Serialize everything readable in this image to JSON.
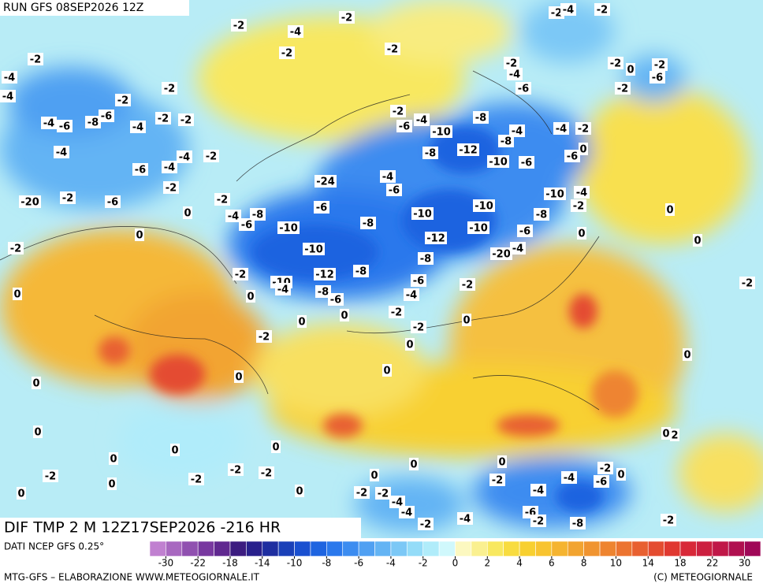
{
  "header": {
    "run": "RUN GFS 08SEP2026 12Z"
  },
  "title": "DIF TMP 2 M 12Z17SEP2026 -216 HR",
  "source": "DATI NCEP GFS 0.25°",
  "credit": "MTG-GFS – ELABORAZIONE WWW.METEOGIORNALE.IT",
  "copyright": "(C) METEOGIORNALE",
  "colorbar": {
    "ticks": [
      -30,
      -22,
      -18,
      -14,
      -10,
      -8,
      -6,
      -4,
      -2,
      0,
      2,
      4,
      6,
      8,
      10,
      14,
      18,
      22,
      30
    ],
    "colors": [
      "#c080d0",
      "#a868c0",
      "#9050b0",
      "#7838a0",
      "#602890",
      "#3c1c80",
      "#28208c",
      "#1e2ea0",
      "#1a40b8",
      "#1a50d0",
      "#1e64e0",
      "#2a78ec",
      "#3c8cf0",
      "#50a0f2",
      "#64b4f4",
      "#7cc8f6",
      "#94dcf8",
      "#b0ecfa",
      "#d0f8fc",
      "#fcf8c0",
      "#faf090",
      "#f8e860",
      "#f8dc40",
      "#f8d030",
      "#f8c430",
      "#f5b430",
      "#f2a430",
      "#f09430",
      "#ee8430",
      "#ec7430",
      "#e86030",
      "#e44c30",
      "#e03830",
      "#d82838",
      "#cc2040",
      "#c01848",
      "#b01050",
      "#a00858"
    ]
  },
  "map": {
    "labels": [
      -2,
      -4,
      -2,
      -2,
      -2,
      -2,
      -4,
      -4,
      -2,
      -2,
      -4,
      -6,
      -8,
      -6,
      -4,
      -2,
      -2,
      -4,
      -2,
      -4,
      -6,
      -4,
      -2,
      -2,
      -20,
      -6,
      0,
      -2,
      -4,
      -8,
      -6,
      0,
      -2,
      -24,
      -4,
      -6,
      -6,
      -10,
      -8,
      -10,
      -12,
      -8,
      -10,
      -4,
      -2,
      0,
      -8,
      -6,
      0,
      -2,
      0,
      0,
      -10,
      -6,
      -4,
      -2,
      -8,
      -12,
      -8,
      -10,
      -6,
      -10,
      -10,
      -12,
      -10,
      -8,
      -20,
      -4,
      -6,
      -4,
      -2,
      -6,
      -8,
      -10,
      -4,
      -2,
      -6,
      -4,
      -2,
      -4,
      -8,
      -4,
      -2,
      -6,
      0,
      -2,
      -4,
      -2,
      -2,
      0,
      -2,
      -6,
      -2,
      0,
      0,
      0,
      -2,
      0,
      -2,
      -2,
      0,
      0,
      0,
      0,
      0,
      0,
      0,
      0,
      0,
      -2,
      0,
      -2,
      -2,
      -2,
      0,
      0,
      0,
      0,
      0,
      -2,
      -4,
      -2,
      -6,
      0,
      -4,
      -2,
      -2,
      -4,
      -4,
      -2,
      -4,
      -6,
      -2,
      -8,
      -2,
      0,
      2
    ]
  }
}
